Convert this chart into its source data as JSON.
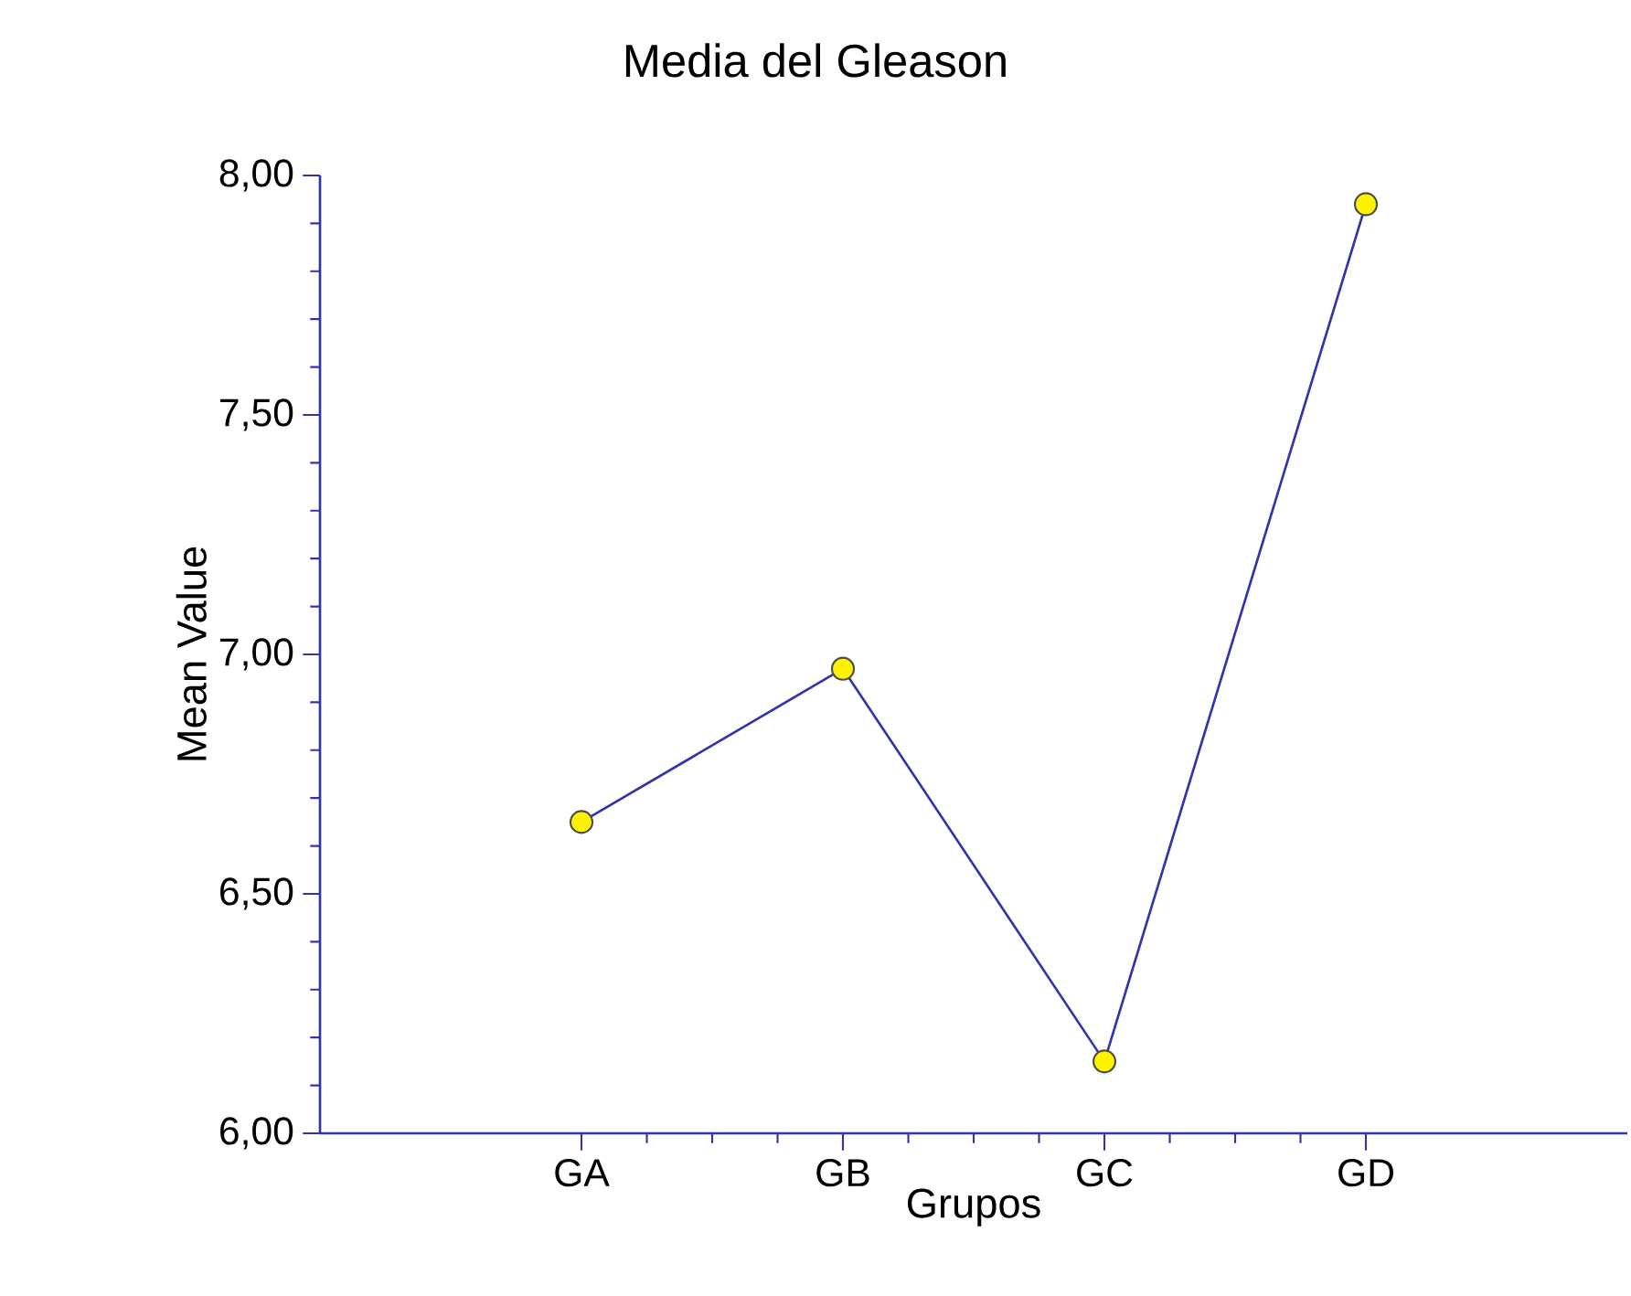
{
  "chart_data": {
    "type": "line",
    "title": "Media del Gleason",
    "xlabel": "Grupos",
    "ylabel": "Mean Value",
    "categories": [
      "GA",
      "GB",
      "GC",
      "GD"
    ],
    "series": [
      {
        "color": "#3333aa",
        "values": [
          6.65,
          6.97,
          6.15,
          7.94
        ]
      }
    ],
    "marker": "circle",
    "grid": false,
    "ylim": [
      6,
      8
    ],
    "yticks": [
      {
        "value": 6,
        "label": "6,00"
      },
      {
        "value": 6.5,
        "label": "6,50"
      },
      {
        "value": 7,
        "label": "7,00"
      },
      {
        "value": 7.5,
        "label": "7,50"
      },
      {
        "value": 8,
        "label": "8,00"
      }
    ]
  }
}
